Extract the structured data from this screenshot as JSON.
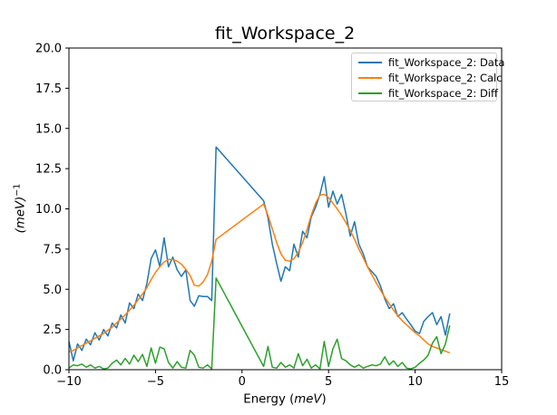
{
  "figure": {
    "background": "#ffffff",
    "axes_color": "#000000"
  },
  "chart_data": {
    "type": "line",
    "title": "fit_Workspace_2",
    "xlabel": {
      "prefix": "Energy (",
      "italic": "meV",
      "suffix": ")"
    },
    "ylabel": {
      "italic": "(meV)",
      "superscript": "−1"
    },
    "xlim": [
      -10,
      15
    ],
    "ylim": [
      0,
      20
    ],
    "grid": false,
    "legend": {
      "position": "upper right"
    },
    "x_ticks": [
      {
        "value": -10,
        "label": "−10"
      },
      {
        "value": -5,
        "label": "−5"
      },
      {
        "value": 0,
        "label": "0"
      },
      {
        "value": 5,
        "label": "5"
      },
      {
        "value": 10,
        "label": "10"
      },
      {
        "value": 15,
        "label": "15"
      }
    ],
    "y_ticks": [
      {
        "value": 0,
        "label": "0.0"
      },
      {
        "value": 2.5,
        "label": "2.5"
      },
      {
        "value": 5,
        "label": "5.0"
      },
      {
        "value": 7.5,
        "label": "7.5"
      },
      {
        "value": 10,
        "label": "10.0"
      },
      {
        "value": 12.5,
        "label": "12.5"
      },
      {
        "value": 15,
        "label": "15.0"
      },
      {
        "value": 17.5,
        "label": "17.5"
      },
      {
        "value": 20,
        "label": "20.0"
      }
    ],
    "note": "data gap (excluded elastic region) between -1.5 and 1.25 meV; lines connect straight across it",
    "x": [
      -10,
      -9.75,
      -9.5,
      -9.25,
      -9,
      -8.75,
      -8.5,
      -8.25,
      -8,
      -7.75,
      -7.5,
      -7.25,
      -7,
      -6.75,
      -6.5,
      -6.25,
      -6,
      -5.75,
      -5.5,
      -5.25,
      -5,
      -4.75,
      -4.5,
      -4.25,
      -4,
      -3.75,
      -3.5,
      -3.25,
      -3,
      -2.75,
      -2.5,
      -2.25,
      -2,
      -1.75,
      -1.5,
      1.25,
      1.5,
      1.75,
      2,
      2.25,
      2.5,
      2.75,
      3,
      3.25,
      3.5,
      3.75,
      4,
      4.25,
      4.5,
      4.75,
      5,
      5.25,
      5.5,
      5.75,
      6,
      6.25,
      6.5,
      6.75,
      7,
      7.25,
      7.5,
      7.75,
      8,
      8.25,
      8.5,
      8.75,
      9,
      9.25,
      9.5,
      9.75,
      10,
      10.25,
      10.5,
      10.75,
      11,
      11.25,
      11.5,
      11.75,
      12
    ],
    "series": [
      {
        "key": "data",
        "name": "fit_Workspace_2: Data",
        "color": "#1f77b4",
        "y": [
          1.75,
          0.55,
          1.6,
          1.2,
          1.9,
          1.55,
          2.3,
          1.85,
          2.5,
          2.1,
          2.9,
          2.6,
          3.4,
          2.9,
          4.15,
          3.8,
          4.7,
          4.3,
          5.35,
          6.9,
          7.45,
          6.4,
          8.2,
          6.4,
          7.0,
          6.2,
          5.8,
          6.2,
          4.3,
          3.95,
          4.6,
          4.55,
          4.55,
          4.3,
          13.85,
          10.5,
          9.45,
          7.8,
          6.6,
          5.5,
          6.4,
          6.15,
          7.8,
          7.0,
          8.6,
          8.2,
          9.5,
          10.1,
          10.9,
          12.0,
          10.1,
          11.1,
          10.3,
          10.9,
          9.7,
          8.3,
          9.2,
          7.8,
          7.2,
          6.4,
          6.1,
          5.8,
          5.2,
          4.4,
          3.8,
          4.1,
          3.3,
          3.55,
          3.15,
          2.8,
          2.4,
          2.25,
          3.0,
          3.3,
          3.55,
          2.8,
          3.3,
          2.15,
          3.5
        ]
      },
      {
        "key": "calc",
        "name": "fit_Workspace_2: Calc",
        "color": "#ff7f0e",
        "y": [
          1.1,
          1.2,
          1.35,
          1.5,
          1.65,
          1.8,
          1.95,
          2.1,
          2.25,
          2.45,
          2.65,
          2.9,
          3.15,
          3.4,
          3.7,
          4.0,
          4.35,
          4.7,
          5.1,
          5.6,
          6.05,
          6.4,
          6.7,
          6.85,
          6.85,
          6.75,
          6.55,
          6.25,
          5.85,
          5.25,
          5.2,
          5.45,
          5.9,
          6.75,
          8.1,
          10.3,
          9.6,
          8.75,
          7.9,
          7.2,
          6.8,
          6.75,
          6.9,
          7.3,
          7.9,
          8.7,
          9.6,
          10.35,
          10.85,
          10.9,
          10.7,
          10.35,
          10.0,
          9.6,
          9.15,
          8.65,
          8.1,
          7.5,
          6.95,
          6.4,
          5.9,
          5.4,
          4.95,
          4.5,
          4.1,
          3.7,
          3.35,
          3.05,
          2.8,
          2.55,
          2.3,
          2.1,
          1.85,
          1.6,
          1.45,
          1.35,
          1.25,
          1.15,
          1.05
        ]
      },
      {
        "key": "diff",
        "name": "fit_Workspace_2: Diff",
        "color": "#2ca02c",
        "y": [
          0.1,
          0.3,
          0.25,
          0.35,
          0.15,
          0.3,
          0.1,
          0.2,
          0.05,
          0.1,
          0.4,
          0.6,
          0.3,
          0.7,
          0.35,
          0.9,
          0.5,
          0.95,
          0.2,
          1.35,
          0.4,
          1.4,
          1.3,
          0.45,
          0.1,
          0.5,
          0.15,
          0.1,
          1.2,
          0.9,
          0.15,
          0.1,
          0.3,
          0.05,
          5.7,
          0.2,
          1.45,
          0.15,
          0.1,
          0.45,
          0.15,
          0.3,
          0.1,
          1.0,
          0.25,
          0.65,
          0.1,
          0.3,
          0.05,
          1.75,
          0.2,
          1.3,
          1.9,
          0.7,
          0.55,
          0.3,
          0.15,
          0.3,
          0.1,
          0.2,
          0.3,
          0.25,
          0.35,
          0.8,
          0.3,
          0.55,
          0.2,
          0.45,
          0.1,
          0.05,
          0.15,
          0.4,
          0.6,
          0.9,
          1.65,
          2.05,
          1.0,
          1.6,
          2.75
        ]
      }
    ]
  }
}
